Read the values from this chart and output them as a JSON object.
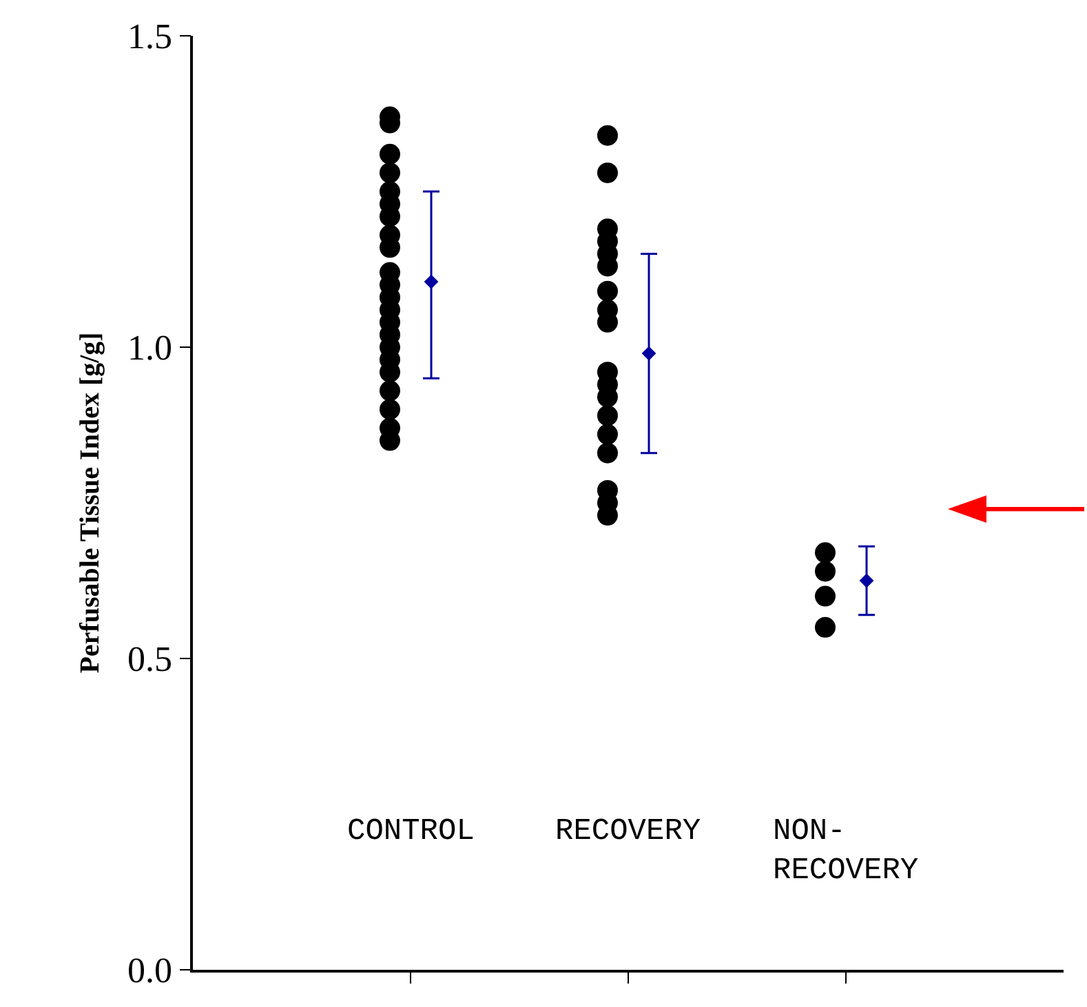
{
  "chart_data": {
    "type": "scatter",
    "ylabel": "Perfusable Tissue Index [g/g]",
    "categories": [
      "CONTROL",
      "RECOVERY",
      "NON-\nRECOVERY"
    ],
    "ylim": [
      0,
      1.5
    ],
    "yticks": [
      {
        "value": 0,
        "label": "0.0"
      },
      {
        "value": 0.5,
        "label": "0.5"
      },
      {
        "value": 1.0,
        "label": "1.0"
      },
      {
        "value": 1.5,
        "label": "1.5"
      }
    ],
    "series": [
      {
        "marker": "circle",
        "color": "#000000",
        "x": [
          "CONTROL",
          "CONTROL",
          "CONTROL",
          "CONTROL",
          "CONTROL",
          "CONTROL",
          "CONTROL",
          "CONTROL",
          "CONTROL",
          "CONTROL",
          "CONTROL",
          "CONTROL",
          "CONTROL",
          "CONTROL",
          "CONTROL",
          "CONTROL",
          "CONTROL",
          "CONTROL",
          "CONTROL",
          "CONTROL",
          "CONTROL",
          "CONTROL",
          "RECOVERY",
          "RECOVERY",
          "RECOVERY",
          "RECOVERY",
          "RECOVERY",
          "RECOVERY",
          "RECOVERY",
          "RECOVERY",
          "RECOVERY",
          "RECOVERY",
          "RECOVERY",
          "RECOVERY",
          "RECOVERY",
          "RECOVERY",
          "RECOVERY",
          "RECOVERY",
          "RECOVERY",
          "RECOVERY",
          "NON-\nRECOVERY",
          "NON-\nRECOVERY",
          "NON-\nRECOVERY",
          "NON-\nRECOVERY"
        ],
        "values": [
          1.37,
          1.36,
          1.31,
          1.28,
          1.25,
          1.23,
          1.21,
          1.18,
          1.16,
          1.12,
          1.1,
          1.08,
          1.06,
          1.04,
          1.02,
          1.0,
          0.98,
          0.96,
          0.93,
          0.9,
          0.87,
          0.85,
          1.34,
          1.28,
          1.19,
          1.17,
          1.15,
          1.13,
          1.09,
          1.06,
          1.04,
          0.96,
          0.94,
          0.92,
          0.89,
          0.86,
          0.83,
          0.77,
          0.75,
          0.73,
          0.67,
          0.64,
          0.6,
          0.55
        ]
      },
      {
        "marker": "diamond",
        "color": "#0000a0",
        "x": [
          "CONTROL",
          "RECOVERY",
          "NON-\nRECOVERY"
        ],
        "values": [
          1.105,
          0.99,
          0.625
        ],
        "errors": [
          [
            0.95,
            1.25
          ],
          [
            0.83,
            1.15
          ],
          [
            0.57,
            0.68
          ]
        ]
      }
    ]
  }
}
